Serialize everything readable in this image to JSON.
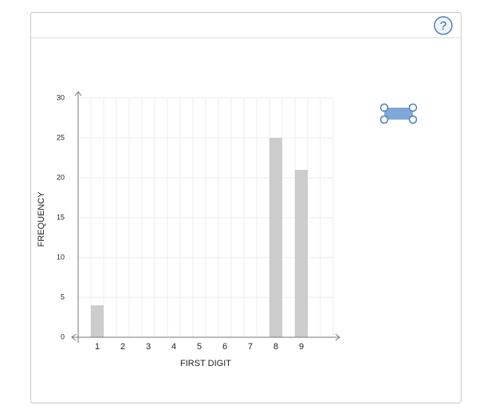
{
  "ui": {
    "help": "?"
  },
  "chart_data": {
    "type": "bar",
    "x_label": "FIRST DIGIT",
    "y_label": "FREQUENCY",
    "categories": [
      "1",
      "2",
      "3",
      "4",
      "5",
      "6",
      "7",
      "8",
      "9"
    ],
    "values": [
      4,
      0,
      0,
      0,
      0,
      0,
      0,
      25,
      21
    ],
    "color": "#cccccc",
    "ylim": [
      0,
      30
    ],
    "yticks": [
      0,
      5,
      10,
      15,
      20,
      25,
      30
    ],
    "grid": true
  }
}
